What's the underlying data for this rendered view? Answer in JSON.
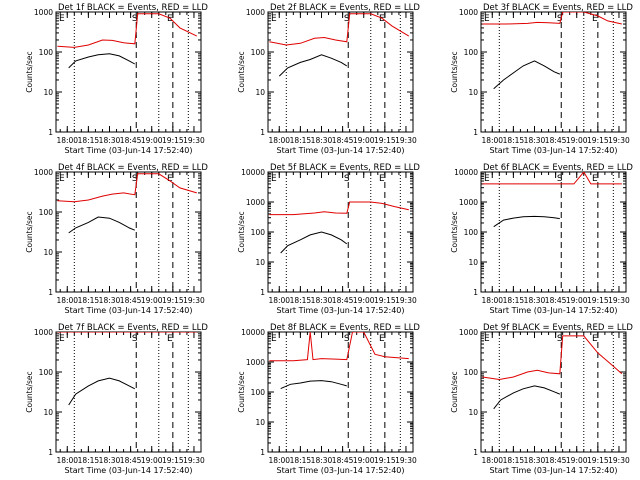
{
  "figure": {
    "xlabel": "Start Time (03-Jun-14 17:52:40)",
    "ylabel": "Counts/sec",
    "x_ticks": [
      "18:00",
      "18:15",
      "18:30",
      "18:45",
      "19:00",
      "19:15",
      "19:30"
    ],
    "colors": {
      "events": "#000000",
      "lld": "#e00000",
      "axes": "#000000"
    }
  },
  "chart_data": [
    {
      "type": "line",
      "title": "Det 1f BLACK = Events, RED = LLD",
      "xlabel": "Start Time (03-Jun-14 17:52:40)",
      "ylabel": "Counts/sec",
      "xlim": [
        "17:52",
        "19:35"
      ],
      "ylim": [
        1,
        1000
      ],
      "y_scale": "log",
      "y_ticks": [
        "1",
        "10",
        "100",
        "1000"
      ],
      "markers": [
        "E",
        "S",
        "E"
      ],
      "series": [
        {
          "name": "Events",
          "color": "#000000",
          "x": [
            "18:01",
            "18:06",
            "18:15",
            "18:22",
            "18:30",
            "18:37",
            "18:44",
            "18:48"
          ],
          "values": [
            40,
            60,
            75,
            85,
            90,
            80,
            60,
            50
          ]
        },
        {
          "name": "LLD",
          "color": "#e00000",
          "x": [
            "17:53",
            "18:05",
            "18:15",
            "18:25",
            "18:32",
            "18:40",
            "18:48",
            "18:50",
            "19:05",
            "19:13",
            "19:20",
            "19:32"
          ],
          "values": [
            140,
            130,
            150,
            200,
            195,
            170,
            160,
            900,
            900,
            700,
            400,
            250
          ]
        }
      ]
    },
    {
      "type": "line",
      "title": "Det 2f BLACK = Events, RED = LLD",
      "xlabel": "Start Time (03-Jun-14 17:52:40)",
      "ylabel": "Counts/sec",
      "xlim": [
        "17:52",
        "19:35"
      ],
      "ylim": [
        1,
        1000
      ],
      "y_scale": "log",
      "y_ticks": [
        "1",
        "10",
        "100",
        "1000"
      ],
      "markers": [
        "E",
        "S",
        "E"
      ],
      "series": [
        {
          "name": "Events",
          "color": "#000000",
          "x": [
            "18:00",
            "18:06",
            "18:15",
            "18:22",
            "18:30",
            "18:37",
            "18:44",
            "18:48"
          ],
          "values": [
            25,
            40,
            55,
            65,
            85,
            70,
            55,
            45
          ]
        },
        {
          "name": "LLD",
          "color": "#e00000",
          "x": [
            "17:53",
            "18:05",
            "18:15",
            "18:25",
            "18:32",
            "18:40",
            "18:48",
            "18:50",
            "19:05",
            "19:13",
            "19:20",
            "19:32"
          ],
          "values": [
            180,
            150,
            165,
            220,
            230,
            200,
            180,
            900,
            900,
            700,
            450,
            250
          ]
        }
      ]
    },
    {
      "type": "line",
      "title": "Det 3f BLACK = Events, RED = LLD",
      "xlabel": "Start Time (03-Jun-14 17:52:40)",
      "ylabel": "Counts/sec",
      "xlim": [
        "17:52",
        "19:35"
      ],
      "ylim": [
        1,
        1000
      ],
      "y_scale": "log",
      "y_ticks": [
        "1",
        "10",
        "100",
        "1000"
      ],
      "markers": [
        "E",
        "S",
        "E"
      ],
      "series": [
        {
          "name": "Events",
          "color": "#000000",
          "x": [
            "18:01",
            "18:08",
            "18:15",
            "18:22",
            "18:30",
            "18:37",
            "18:44",
            "18:48"
          ],
          "values": [
            12,
            20,
            30,
            45,
            60,
            45,
            32,
            28
          ]
        },
        {
          "name": "LLD",
          "color": "#e00000",
          "x": [
            "17:53",
            "18:10",
            "18:25",
            "18:32",
            "18:40",
            "18:48",
            "18:50",
            "19:05",
            "19:15",
            "19:22",
            "19:32"
          ],
          "values": [
            500,
            500,
            520,
            550,
            540,
            520,
            1000,
            1000,
            800,
            600,
            500
          ]
        }
      ]
    },
    {
      "type": "line",
      "title": "Det 4f BLACK = Events, RED = LLD",
      "xlabel": "Start Time (03-Jun-14 17:52:40)",
      "ylabel": "Counts/sec",
      "xlim": [
        "17:52",
        "19:35"
      ],
      "ylim": [
        1,
        1000
      ],
      "y_scale": "log",
      "y_ticks": [
        "1",
        "10",
        "100",
        "1000"
      ],
      "markers": [
        "E",
        "S",
        "E"
      ],
      "series": [
        {
          "name": "Events",
          "color": "#000000",
          "x": [
            "18:01",
            "18:06",
            "18:15",
            "18:22",
            "18:30",
            "18:37",
            "18:44",
            "18:48"
          ],
          "values": [
            30,
            40,
            55,
            75,
            70,
            55,
            40,
            35
          ]
        },
        {
          "name": "LLD",
          "color": "#e00000",
          "x": [
            "17:53",
            "18:05",
            "18:15",
            "18:25",
            "18:32",
            "18:40",
            "18:48",
            "18:50",
            "19:05",
            "19:13",
            "19:20",
            "19:32"
          ],
          "values": [
            190,
            180,
            200,
            250,
            280,
            300,
            270,
            900,
            900,
            600,
            400,
            300
          ]
        }
      ]
    },
    {
      "type": "line",
      "title": "Det 5f BLACK = Events, RED = LLD",
      "xlabel": "Start Time (03-Jun-14 17:52:40)",
      "ylabel": "Counts/sec",
      "xlim": [
        "17:52",
        "19:35"
      ],
      "ylim": [
        1,
        10000
      ],
      "y_scale": "log",
      "y_ticks": [
        "1",
        "10",
        "100",
        "1000",
        "10000"
      ],
      "markers": [
        "E",
        "S",
        "E"
      ],
      "series": [
        {
          "name": "Events",
          "color": "#000000",
          "x": [
            "18:01",
            "18:06",
            "18:15",
            "18:22",
            "18:30",
            "18:37",
            "18:44",
            "18:48"
          ],
          "values": [
            20,
            35,
            55,
            80,
            100,
            80,
            55,
            40
          ]
        },
        {
          "name": "LLD",
          "color": "#e00000",
          "x": [
            "17:53",
            "18:10",
            "18:25",
            "18:32",
            "18:40",
            "18:48",
            "18:50",
            "19:05",
            "19:13",
            "19:22",
            "19:32"
          ],
          "values": [
            380,
            380,
            430,
            470,
            430,
            420,
            1000,
            1000,
            900,
            700,
            550
          ]
        }
      ]
    },
    {
      "type": "line",
      "title": "Det 6f BLACK = Events, RED = LLD",
      "xlabel": "Start Time (03-Jun-14 17:52:40)",
      "ylabel": "Counts/sec",
      "xlim": [
        "17:52",
        "19:35"
      ],
      "ylim": [
        1,
        10000
      ],
      "y_scale": "log",
      "y_ticks": [
        "1",
        "10",
        "100",
        "1000",
        "10000"
      ],
      "markers": [
        "E",
        "S",
        "E"
      ],
      "series": [
        {
          "name": "Events",
          "color": "#000000",
          "x": [
            "18:01",
            "18:08",
            "18:15",
            "18:22",
            "18:30",
            "18:37",
            "18:44",
            "18:48"
          ],
          "values": [
            150,
            250,
            290,
            320,
            330,
            320,
            300,
            280
          ]
        },
        {
          "name": "LLD",
          "color": "#e00000",
          "x": [
            "17:53",
            "18:10",
            "18:25",
            "18:40",
            "18:48",
            "18:58",
            "19:05",
            "19:10",
            "19:32"
          ],
          "values": [
            4000,
            4000,
            4000,
            4000,
            4000,
            4000,
            10000,
            4000,
            4000
          ]
        }
      ]
    },
    {
      "type": "line",
      "title": "Det 7f BLACK = Events, RED = LLD",
      "xlabel": "Start Time (03-Jun-14 17:52:40)",
      "ylabel": "Counts/sec",
      "xlim": [
        "17:52",
        "19:35"
      ],
      "ylim": [
        1,
        1000
      ],
      "y_scale": "log",
      "y_ticks": [
        "1",
        "10",
        "100",
        "1000"
      ],
      "markers": [
        "E",
        "S",
        "E"
      ],
      "series": [
        {
          "name": "Events",
          "color": "#000000",
          "x": [
            "18:01",
            "18:06",
            "18:15",
            "18:22",
            "18:30",
            "18:37",
            "18:44",
            "18:48"
          ],
          "values": [
            15,
            28,
            45,
            60,
            70,
            60,
            45,
            38
          ]
        },
        {
          "name": "LLD",
          "color": "#e00000",
          "x": [
            "17:53",
            "18:10",
            "18:25",
            "18:40",
            "18:48",
            "18:58",
            "19:10",
            "19:32"
          ],
          "values": [
            1000,
            1000,
            1000,
            1000,
            1000,
            1000,
            1000,
            1000
          ]
        }
      ]
    },
    {
      "type": "line",
      "title": "Det 8f BLACK = Events, RED = LLD",
      "xlabel": "Start Time (03-Jun-14 17:52:40)",
      "ylabel": "Counts/sec",
      "xlim": [
        "17:52",
        "19:35"
      ],
      "ylim": [
        1,
        10000
      ],
      "y_scale": "log",
      "y_ticks": [
        "1",
        "10",
        "100",
        "1000",
        "10000"
      ],
      "markers": [
        "E",
        "S",
        "E"
      ],
      "series": [
        {
          "name": "Events",
          "color": "#000000",
          "x": [
            "18:01",
            "18:08",
            "18:15",
            "18:22",
            "18:30",
            "18:37",
            "18:44",
            "18:48"
          ],
          "values": [
            130,
            180,
            200,
            230,
            240,
            220,
            180,
            160
          ]
        },
        {
          "name": "LLD",
          "color": "#e00000",
          "x": [
            "17:53",
            "18:10",
            "18:20",
            "18:22",
            "18:24",
            "18:30",
            "18:40",
            "18:48",
            "18:52",
            "19:00",
            "19:08",
            "19:15",
            "19:32"
          ],
          "values": [
            1100,
            1100,
            1200,
            10000,
            1200,
            1300,
            1250,
            1200,
            10000,
            10000,
            1800,
            1500,
            1300
          ]
        }
      ]
    },
    {
      "type": "line",
      "title": "Det 9f BLACK = Events, RED = LLD",
      "xlabel": "Start Time (03-Jun-14 17:52:40)",
      "ylabel": "Counts/sec",
      "xlim": [
        "17:52",
        "19:35"
      ],
      "ylim": [
        1,
        1000
      ],
      "y_scale": "log",
      "y_ticks": [
        "1",
        "10",
        "100",
        "1000"
      ],
      "markers": [
        "E",
        "S",
        "E"
      ],
      "series": [
        {
          "name": "Events",
          "color": "#000000",
          "x": [
            "18:01",
            "18:06",
            "18:15",
            "18:22",
            "18:30",
            "18:37",
            "18:44",
            "18:48"
          ],
          "values": [
            12,
            20,
            30,
            38,
            45,
            40,
            32,
            28
          ]
        },
        {
          "name": "LLD",
          "color": "#e00000",
          "x": [
            "17:53",
            "18:05",
            "18:15",
            "18:25",
            "18:32",
            "18:40",
            "18:48",
            "18:50",
            "19:05",
            "19:15",
            "19:25",
            "19:32"
          ],
          "values": [
            75,
            65,
            75,
            100,
            110,
            95,
            90,
            800,
            800,
            300,
            150,
            90
          ]
        }
      ]
    }
  ]
}
